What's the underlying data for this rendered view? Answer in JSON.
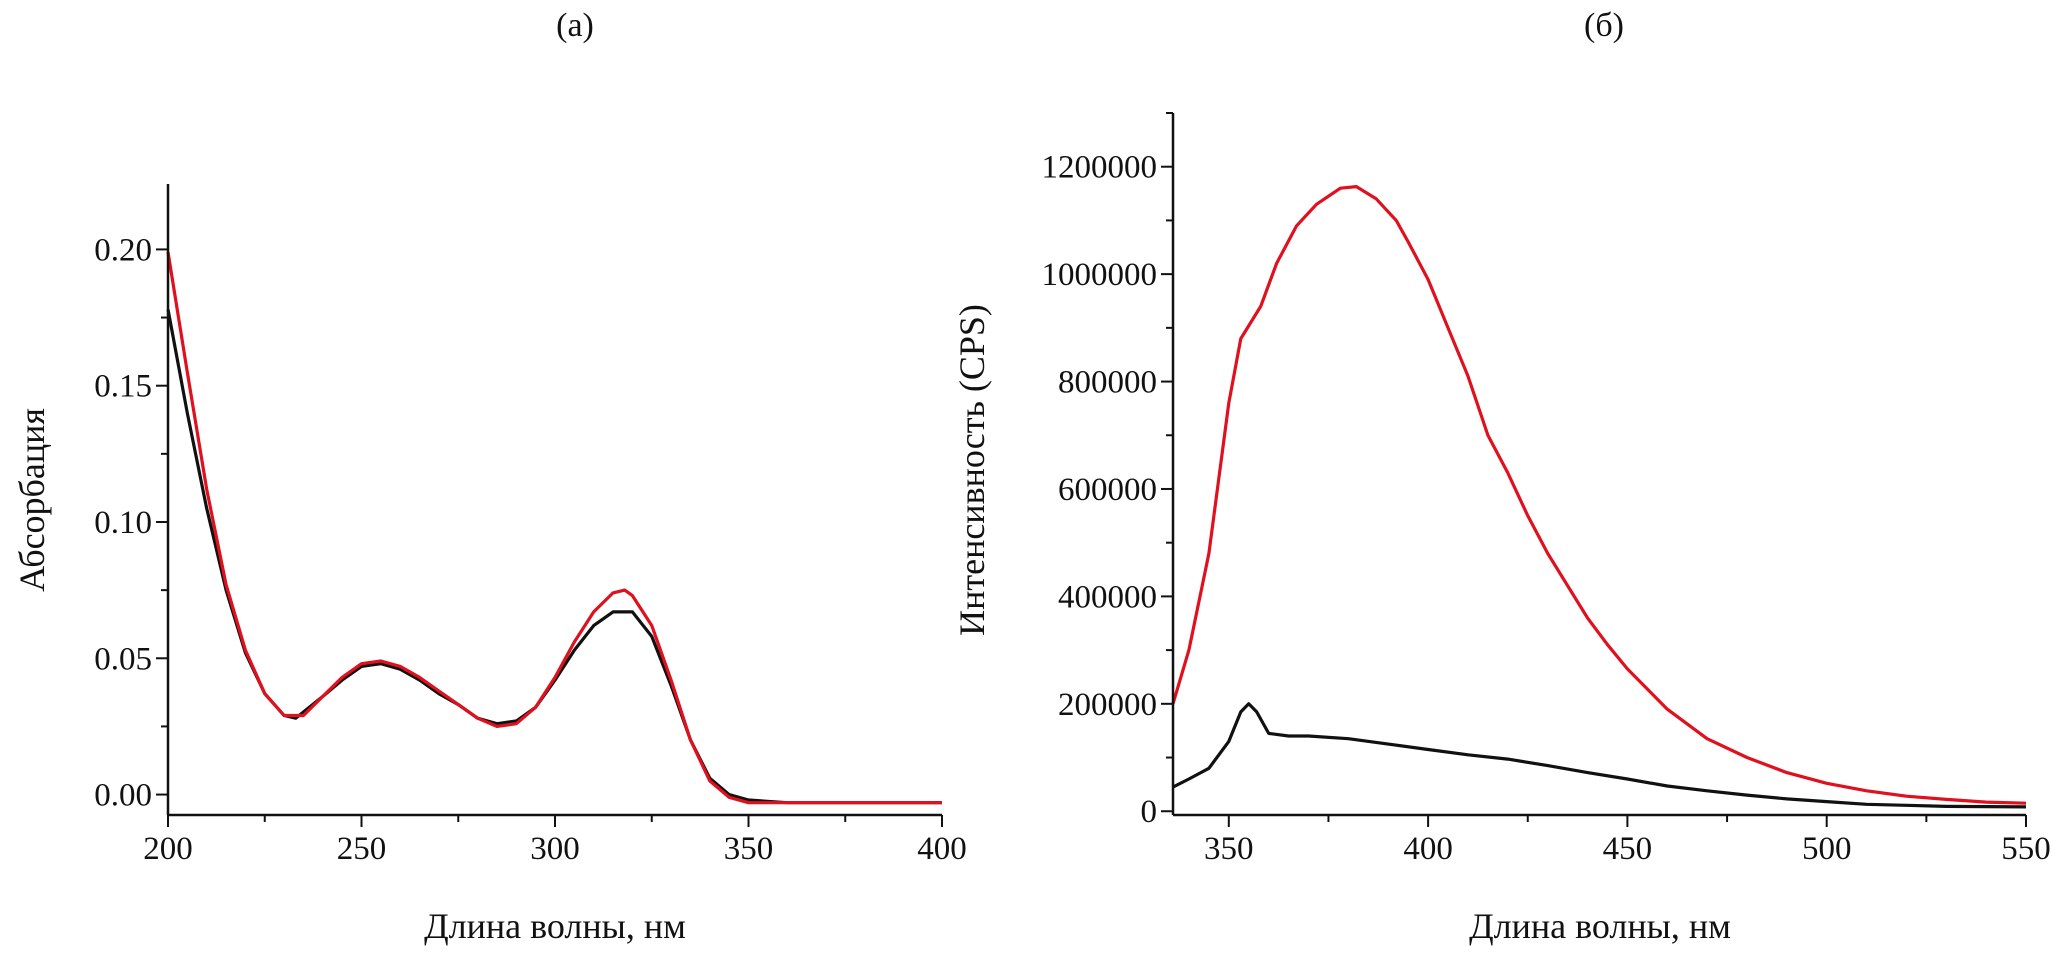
{
  "chart_data": [
    {
      "type": "line",
      "panel_label": "(а)",
      "xlabel": "Длина волны, нм",
      "ylabel": "Абсорбация",
      "xlim": [
        200,
        400
      ],
      "ylim": [
        -0.0075,
        0.224
      ],
      "xticks": [
        200,
        250,
        300,
        350,
        400
      ],
      "xtick_labels": [
        "200",
        "250",
        "300",
        "350",
        "400"
      ],
      "yticks": [
        0.0,
        0.05,
        0.1,
        0.15,
        0.2
      ],
      "ytick_labels": [
        "0.00",
        "0.05",
        "0.10",
        "0.15",
        "0.20"
      ],
      "grid": false,
      "series": [
        {
          "name": "black",
          "color": "#111111",
          "x": [
            200,
            205,
            210,
            215,
            220,
            225,
            230,
            233,
            240,
            245,
            250,
            255,
            260,
            265,
            270,
            275,
            280,
            285,
            290,
            295,
            300,
            305,
            310,
            315,
            320,
            325,
            330,
            335,
            340,
            345,
            350,
            360,
            400
          ],
          "y": [
            0.178,
            0.14,
            0.105,
            0.075,
            0.052,
            0.037,
            0.029,
            0.028,
            0.036,
            0.042,
            0.047,
            0.048,
            0.046,
            0.042,
            0.037,
            0.033,
            0.028,
            0.026,
            0.027,
            0.032,
            0.042,
            0.053,
            0.062,
            0.067,
            0.067,
            0.058,
            0.04,
            0.02,
            0.006,
            0.0,
            -0.002,
            -0.003,
            -0.003
          ]
        },
        {
          "name": "red",
          "color": "#e0101e",
          "x": [
            200,
            205,
            210,
            215,
            220,
            225,
            230,
            235,
            240,
            245,
            250,
            255,
            260,
            265,
            270,
            275,
            280,
            285,
            290,
            295,
            300,
            305,
            310,
            315,
            318,
            320,
            325,
            330,
            335,
            340,
            345,
            350,
            400
          ],
          "y": [
            0.199,
            0.155,
            0.112,
            0.077,
            0.053,
            0.037,
            0.029,
            0.029,
            0.036,
            0.043,
            0.048,
            0.049,
            0.047,
            0.043,
            0.038,
            0.033,
            0.028,
            0.025,
            0.026,
            0.032,
            0.043,
            0.056,
            0.067,
            0.074,
            0.075,
            0.073,
            0.062,
            0.042,
            0.02,
            0.005,
            -0.001,
            -0.003,
            -0.003
          ]
        }
      ]
    },
    {
      "type": "line",
      "panel_label": "(б)",
      "xlabel": "Длина волны, нм",
      "ylabel": "Интенсивность (CPS)",
      "xlim": [
        336,
        550
      ],
      "ylim": [
        -7000,
        1300000
      ],
      "xticks": [
        350,
        400,
        450,
        500,
        550
      ],
      "xtick_labels": [
        "350",
        "400",
        "450",
        "500",
        "550"
      ],
      "yticks": [
        0,
        200000,
        400000,
        600000,
        800000,
        1000000,
        1200000
      ],
      "ytick_labels": [
        "0",
        "200000",
        "400000",
        "600000",
        "800000",
        "1000000",
        "1200000"
      ],
      "grid": false,
      "series": [
        {
          "name": "black",
          "color": "#111111",
          "x": [
            336,
            340,
            345,
            350,
            353,
            355,
            357,
            360,
            365,
            370,
            380,
            390,
            400,
            410,
            420,
            430,
            440,
            450,
            460,
            470,
            480,
            490,
            500,
            510,
            520,
            530,
            550
          ],
          "y": [
            45000,
            60000,
            80000,
            130000,
            185000,
            200000,
            185000,
            145000,
            140000,
            140000,
            135000,
            125000,
            115000,
            105000,
            97000,
            85000,
            72000,
            60000,
            47000,
            38000,
            30000,
            23000,
            18000,
            13000,
            11000,
            9000,
            8000
          ]
        },
        {
          "name": "red",
          "color": "#e0101e",
          "x": [
            336,
            340,
            345,
            350,
            353,
            358,
            362,
            367,
            372,
            378,
            382,
            387,
            392,
            395,
            400,
            405,
            410,
            415,
            420,
            425,
            430,
            435,
            440,
            445,
            450,
            460,
            470,
            480,
            490,
            500,
            510,
            520,
            530,
            540,
            550
          ],
          "y": [
            200000,
            300000,
            480000,
            760000,
            880000,
            940000,
            1020000,
            1090000,
            1130000,
            1160000,
            1163000,
            1140000,
            1100000,
            1060000,
            990000,
            900000,
            810000,
            700000,
            630000,
            550000,
            480000,
            420000,
            360000,
            310000,
            265000,
            190000,
            135000,
            100000,
            72000,
            52000,
            38000,
            28000,
            22000,
            17000,
            15000
          ]
        }
      ]
    }
  ]
}
